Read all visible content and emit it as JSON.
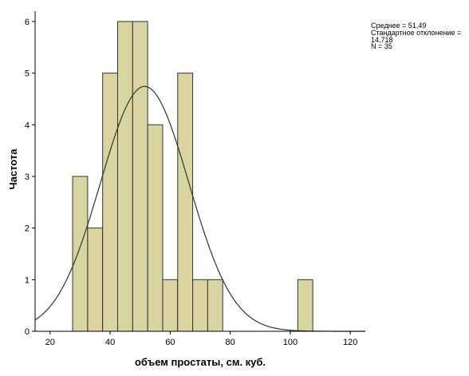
{
  "chart_data": {
    "type": "bar",
    "chart_kind": "histogram",
    "title": "",
    "xlabel": "объем простаты, см. куб.",
    "ylabel": "Частота",
    "xlim": [
      15,
      125
    ],
    "ylim": [
      0,
      6.2
    ],
    "x_ticks": [
      20,
      40,
      60,
      80,
      100,
      120
    ],
    "y_ticks": [
      0,
      1,
      2,
      3,
      4,
      5,
      6
    ],
    "bin_width": 5,
    "bins": [
      {
        "start": 27.5,
        "end": 32.5,
        "count": 3
      },
      {
        "start": 32.5,
        "end": 37.5,
        "count": 2
      },
      {
        "start": 37.5,
        "end": 42.5,
        "count": 5
      },
      {
        "start": 42.5,
        "end": 47.5,
        "count": 6
      },
      {
        "start": 47.5,
        "end": 52.5,
        "count": 6
      },
      {
        "start": 52.5,
        "end": 57.5,
        "count": 4
      },
      {
        "start": 57.5,
        "end": 62.5,
        "count": 1
      },
      {
        "start": 62.5,
        "end": 67.5,
        "count": 5
      },
      {
        "start": 67.5,
        "end": 72.5,
        "count": 1
      },
      {
        "start": 72.5,
        "end": 77.5,
        "count": 1
      },
      {
        "start": 102.5,
        "end": 107.5,
        "count": 1
      }
    ],
    "normal_curve": {
      "mean": 51.49,
      "sd": 14.718,
      "n": 35
    },
    "grid": false,
    "legend": "none",
    "colors": {
      "bar_fill": "#d9d5a0",
      "bar_stroke": "#333333",
      "curve": "#333333",
      "axis": "#000000"
    }
  },
  "stats_box": {
    "mean_line": "Среднее = 51,49",
    "sd_line1": "Стандартное отклонение =",
    "sd_line2": "14,718",
    "n_line": "N = 35"
  }
}
